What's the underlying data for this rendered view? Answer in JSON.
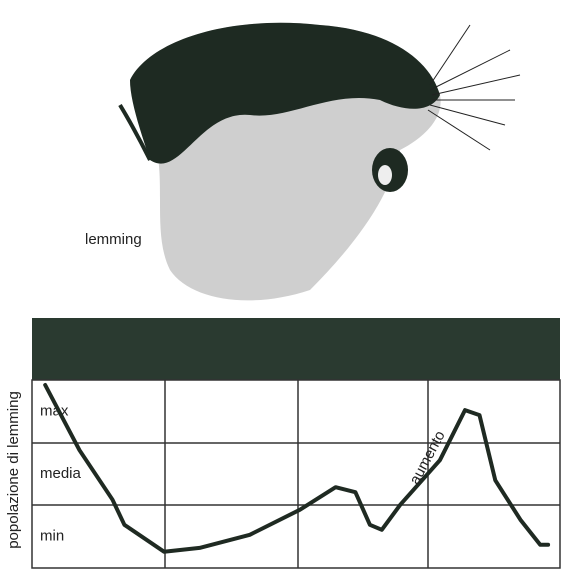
{
  "chart_data": {
    "type": "line",
    "ylabel": "popolazione di lemming",
    "annotation": "aumento",
    "illustration_label": "lemming",
    "x": [
      0.1,
      0.36,
      0.61,
      0.7,
      1.0,
      1.27,
      1.65,
      2.03,
      2.3,
      2.45,
      2.56,
      2.65,
      2.79,
      3.09,
      3.28,
      3.39,
      3.51,
      3.7,
      3.85,
      3.91
    ],
    "values": [
      2.92,
      1.88,
      1.09,
      0.69,
      0.26,
      0.32,
      0.53,
      0.93,
      1.29,
      1.21,
      0.69,
      0.61,
      1.01,
      1.72,
      2.52,
      2.44,
      1.4,
      0.77,
      0.37,
      0.37
    ],
    "color": "#1f2a22",
    "xlim": [
      0,
      4
    ],
    "ylim": [
      0,
      3
    ],
    "yticks": [
      {
        "value": 0.5,
        "label": "min"
      },
      {
        "value": 1.5,
        "label": "media"
      },
      {
        "value": 2.5,
        "label": "max"
      }
    ]
  }
}
